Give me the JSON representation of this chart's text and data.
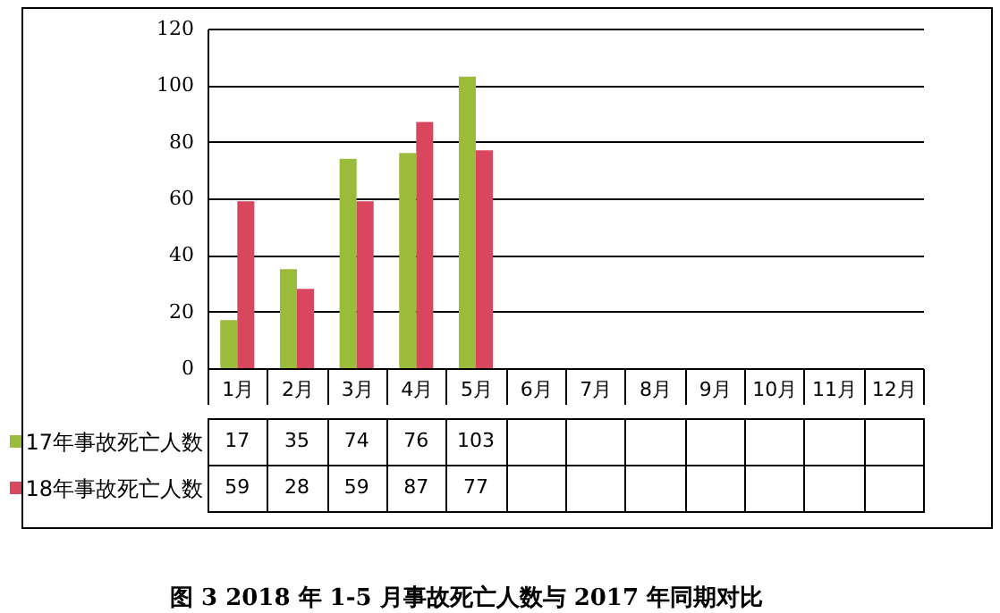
{
  "chart_data": {
    "type": "bar",
    "title": "图 3   2018 年 1-5 月事故死亡人数与 2017 年同期对比",
    "categories": [
      "1月",
      "2月",
      "3月",
      "4月",
      "5月",
      "6月",
      "7月",
      "8月",
      "9月",
      "10月",
      "11月",
      "12月"
    ],
    "series": [
      {
        "name": "17年事故死亡人数",
        "color": "#9bbb3b",
        "values": [
          17,
          35,
          74,
          76,
          103,
          null,
          null,
          null,
          null,
          null,
          null,
          null
        ]
      },
      {
        "name": "18年事故死亡人数",
        "color": "#d9475f",
        "values": [
          59,
          28,
          59,
          87,
          77,
          null,
          null,
          null,
          null,
          null,
          null,
          null
        ]
      }
    ],
    "ylim": [
      0,
      120
    ],
    "yticks": [
      0,
      20,
      40,
      60,
      80,
      100,
      120
    ],
    "grid": "y",
    "legend": "bottom",
    "data_labels": true
  }
}
